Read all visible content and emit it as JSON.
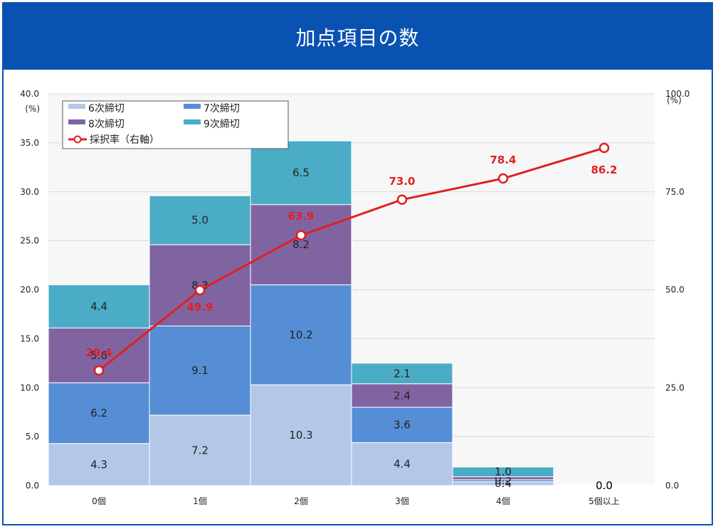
{
  "header": {
    "title": "加点項目の数"
  },
  "colors": {
    "banner": "#0a52b1",
    "line": "#e02020"
  },
  "chart_data": {
    "type": "bar",
    "stacked": true,
    "categories": [
      "0個",
      "1個",
      "2個",
      "3個",
      "4個",
      "5個以上"
    ],
    "series": [
      {
        "name": "6次締切",
        "color": "#b4c7e7",
        "values": [
          4.3,
          7.2,
          10.3,
          4.4,
          0.4,
          0.0
        ],
        "labels": [
          "4.3",
          "7.2",
          "10.3",
          "4.4",
          "0.4",
          "0.0"
        ]
      },
      {
        "name": "7次締切",
        "color": "#558ed5",
        "values": [
          6.2,
          9.1,
          10.2,
          3.6,
          0.2,
          0.0
        ],
        "labels": [
          "6.2",
          "9.1",
          "10.2",
          "3.6",
          "0.2",
          "0.0"
        ]
      },
      {
        "name": "8次締切",
        "color": "#8064a2",
        "values": [
          5.6,
          8.3,
          8.2,
          2.4,
          0.3,
          0.0
        ],
        "labels": [
          "5.6",
          "8.3",
          "8.2",
          "2.4",
          "0.3",
          "0.0"
        ]
      },
      {
        "name": "9次締切",
        "color": "#4bacc6",
        "values": [
          4.4,
          5.0,
          6.5,
          2.1,
          1.0,
          0.0
        ],
        "labels": [
          "4.4",
          "5.0",
          "6.5",
          "2.1",
          "1.0",
          "0.0"
        ]
      }
    ],
    "line_series": {
      "name": "採択率（右軸）",
      "color": "#e02020",
      "axis": "right",
      "values": [
        29.4,
        49.9,
        63.9,
        73.0,
        78.4,
        86.2
      ],
      "labels": [
        "29.4",
        "49.9",
        "63.9",
        "73.0",
        "78.4",
        "86.2"
      ]
    },
    "y_left": {
      "unit": "(%)",
      "range": [
        0,
        40
      ],
      "ticks": [
        "0.0",
        "5.0",
        "10.0",
        "15.0",
        "20.0",
        "25.0",
        "30.0",
        "35.0",
        "40.0"
      ]
    },
    "y_right": {
      "unit": "(%)",
      "range": [
        0,
        100
      ],
      "ticks": [
        "0.0",
        "25.0",
        "50.0",
        "75.0",
        "100.0"
      ]
    },
    "grid": true,
    "legend": "top-left"
  }
}
